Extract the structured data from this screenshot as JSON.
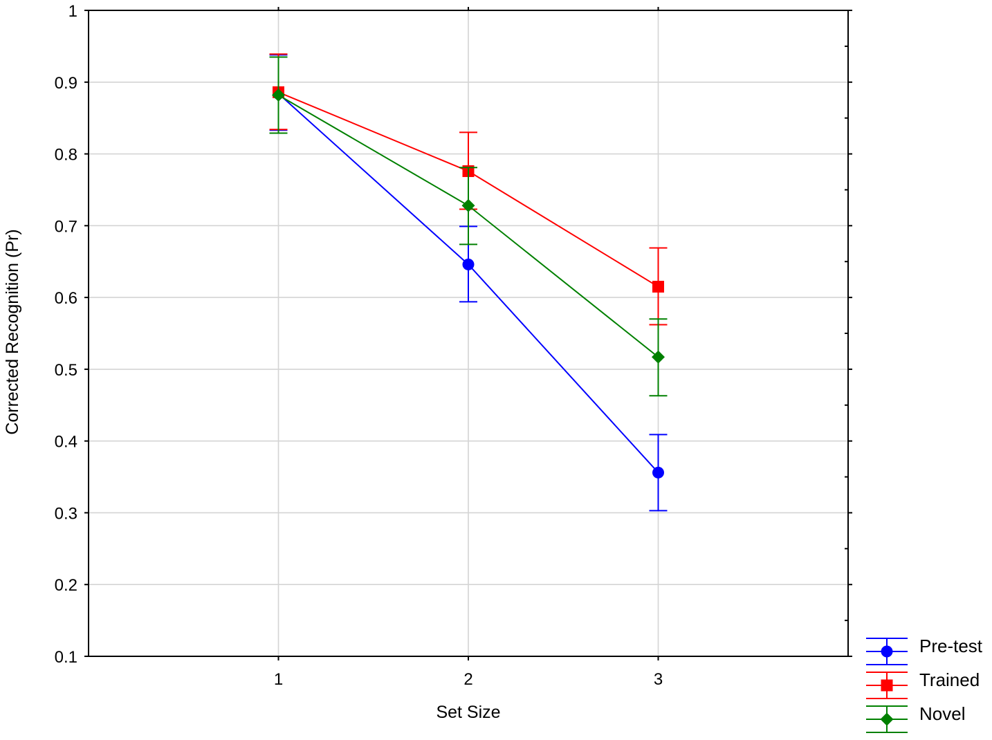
{
  "chart_data": {
    "type": "line",
    "xlabel": "Set Size",
    "ylabel": "Corrected Recognition (Pr)",
    "x": [
      1,
      2,
      3
    ],
    "x_tick_labels": [
      "1",
      "2",
      "3"
    ],
    "xlim": [
      0,
      4
    ],
    "ylim": [
      0.1,
      1.0
    ],
    "y_ticks": [
      0.1,
      0.2,
      0.3,
      0.4,
      0.5,
      0.6,
      0.7,
      0.8,
      0.9,
      1.0
    ],
    "y_tick_labels": [
      "0.1",
      "0.2",
      "0.3",
      "0.4",
      "0.5",
      "0.6",
      "0.7",
      "0.8",
      "0.9",
      "1"
    ],
    "grid": true,
    "legend_position": "bottom-right, outside plot",
    "series": [
      {
        "name": "Pre-test",
        "color": "#0000ff",
        "marker": "circle",
        "values": [
          0.884,
          0.646,
          0.356
        ],
        "err_low": [
          0.833,
          0.594,
          0.303
        ],
        "err_high": [
          0.938,
          0.699,
          0.409
        ]
      },
      {
        "name": "Trained",
        "color": "#ff0000",
        "marker": "square",
        "values": [
          0.886,
          0.776,
          0.615
        ],
        "err_low": [
          0.834,
          0.723,
          0.562
        ],
        "err_high": [
          0.939,
          0.83,
          0.669
        ]
      },
      {
        "name": "Novel",
        "color": "#008000",
        "marker": "diamond",
        "values": [
          0.882,
          0.728,
          0.517
        ],
        "err_low": [
          0.829,
          0.674,
          0.463
        ],
        "err_high": [
          0.935,
          0.781,
          0.57
        ]
      }
    ]
  }
}
